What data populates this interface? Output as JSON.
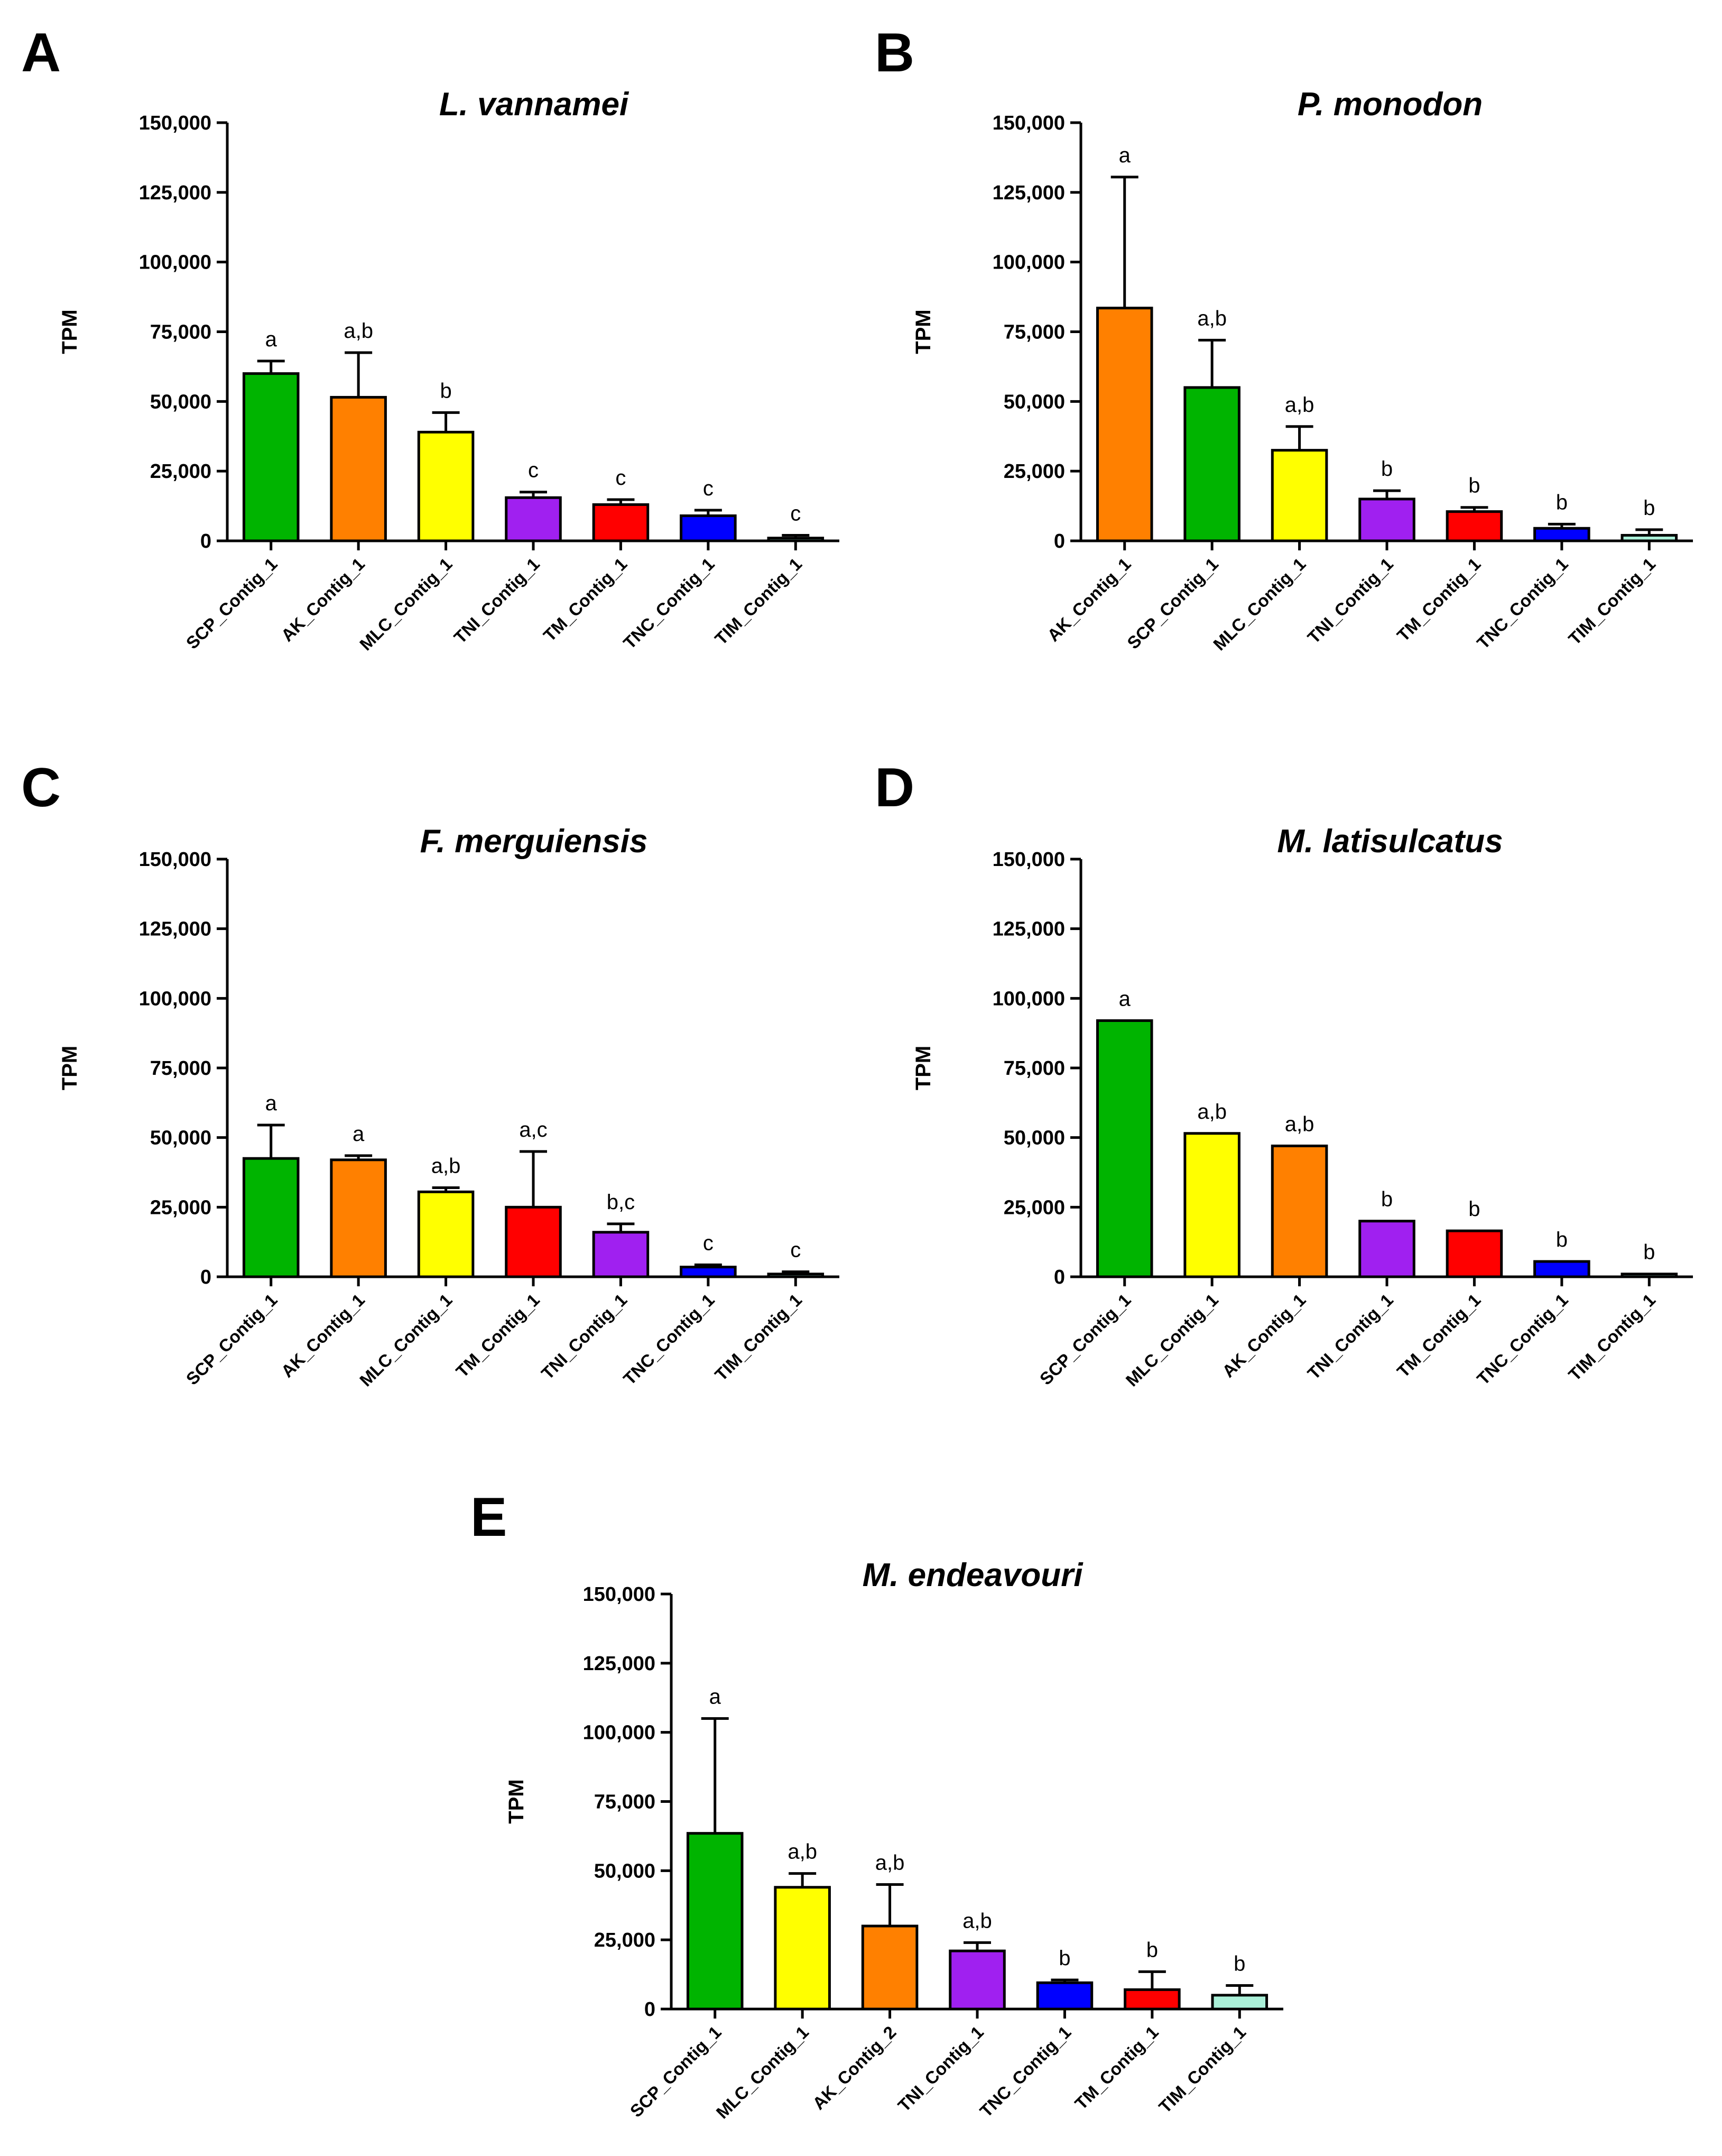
{
  "colors": {
    "SCP": "#00b400",
    "AK": "#ff8000",
    "MLC": "#ffff00",
    "TNI": "#a020f0",
    "TM": "#ff0000",
    "TNC": "#0000ff",
    "TIM": "#aaf0d8"
  },
  "chart_data": [
    {
      "panel": "A",
      "type": "bar",
      "title": "L. vannamei",
      "ylabel": "TPM",
      "ylim": [
        0,
        150000
      ],
      "yticks": [
        "0",
        "25,000",
        "50,000",
        "75,000",
        "100,000",
        "125,000",
        "150,000"
      ],
      "categories": [
        "SCP_Contig_1",
        "AK_Contig_1",
        "MLC_Contig_1",
        "TNI_Contig_1",
        "TM_Contig_1",
        "TNC_Contig_1",
        "TIM_Contig_1"
      ],
      "color_keys": [
        "SCP",
        "AK",
        "MLC",
        "TNI",
        "TM",
        "TNC",
        "TIM"
      ],
      "values": [
        60000,
        51500,
        39000,
        15500,
        13000,
        9000,
        1000
      ],
      "errors": [
        4500,
        16000,
        7000,
        2000,
        1800,
        2000,
        1000
      ],
      "labels": [
        "a",
        "a,b",
        "b",
        "c",
        "c",
        "c",
        "c"
      ]
    },
    {
      "panel": "B",
      "type": "bar",
      "title": "P. monodon",
      "ylabel": "TPM",
      "ylim": [
        0,
        150000
      ],
      "yticks": [
        "0",
        "25,000",
        "50,000",
        "75,000",
        "100,000",
        "125,000",
        "150,000"
      ],
      "categories": [
        "AK_Contig_1",
        "SCP_Contig_1",
        "MLC_Contig_1",
        "TNI_Contig_1",
        "TM_Contig_1",
        "TNC_Contig_1",
        "TIM_Contig_1"
      ],
      "color_keys": [
        "AK",
        "SCP",
        "MLC",
        "TNI",
        "TM",
        "TNC",
        "TIM"
      ],
      "values": [
        83500,
        55000,
        32500,
        15000,
        10500,
        4500,
        2000
      ],
      "errors": [
        47000,
        17000,
        8500,
        3000,
        1500,
        1500,
        2000
      ],
      "labels": [
        "a",
        "a,b",
        "a,b",
        "b",
        "b",
        "b",
        "b"
      ]
    },
    {
      "panel": "C",
      "type": "bar",
      "title": "F. merguiensis",
      "ylabel": "TPM",
      "ylim": [
        0,
        150000
      ],
      "yticks": [
        "0",
        "25,000",
        "50,000",
        "75,000",
        "100,000",
        "125,000",
        "150,000"
      ],
      "categories": [
        "SCP_Contig_1",
        "AK_Contig_1",
        "MLC_Contig_1",
        "TM_Contig_1",
        "TNI_Contig_1",
        "TNC_Contig_1",
        "TIM_Contig_1"
      ],
      "color_keys": [
        "SCP",
        "AK",
        "MLC",
        "TM",
        "TNI",
        "TNC",
        "TIM"
      ],
      "values": [
        42500,
        42000,
        30500,
        25000,
        16000,
        3500,
        1000
      ],
      "errors": [
        12000,
        1500,
        1500,
        20000,
        3000,
        800,
        800
      ],
      "labels": [
        "a",
        "a",
        "a,b",
        "a,c",
        "b,c",
        "c",
        "c"
      ]
    },
    {
      "panel": "D",
      "type": "bar",
      "title": "M. latisulcatus",
      "ylabel": "TPM",
      "ylim": [
        0,
        150000
      ],
      "yticks": [
        "0",
        "25,000",
        "50,000",
        "75,000",
        "100,000",
        "125,000",
        "150,000"
      ],
      "categories": [
        "SCP_Contig_1",
        "MLC_Contig_1",
        "AK_Contig_1",
        "TNI_Contig_1",
        "TM_Contig_1",
        "TNC_Contig_1",
        "TIM_Contig_1"
      ],
      "color_keys": [
        "SCP",
        "MLC",
        "AK",
        "TNI",
        "TM",
        "TNC",
        "TIM"
      ],
      "values": [
        92000,
        51500,
        47000,
        20000,
        16500,
        5500,
        1000
      ],
      "errors": [
        0,
        0,
        0,
        0,
        0,
        0,
        0
      ],
      "labels": [
        "a",
        "a,b",
        "a,b",
        "b",
        "b",
        "b",
        "b"
      ]
    },
    {
      "panel": "E",
      "type": "bar",
      "title": "M. endeavouri",
      "ylabel": "TPM",
      "ylim": [
        0,
        150000
      ],
      "yticks": [
        "0",
        "25,000",
        "50,000",
        "75,000",
        "100,000",
        "125,000",
        "150,000"
      ],
      "categories": [
        "SCP_Contig_1",
        "MLC_Contig_1",
        "AK_Contig_2",
        "TNI_Contig_1",
        "TNC_Contig_1",
        "TM_Contig_1",
        "TIM_Contig_1"
      ],
      "color_keys": [
        "SCP",
        "MLC",
        "AK",
        "TNI",
        "TNC",
        "TM",
        "TIM"
      ],
      "values": [
        63500,
        44000,
        30000,
        21000,
        9500,
        7000,
        5000
      ],
      "errors": [
        41500,
        5000,
        15000,
        3000,
        1000,
        6500,
        3500
      ],
      "labels": [
        "a",
        "a,b",
        "a,b",
        "a,b",
        "b",
        "b",
        "b"
      ]
    }
  ]
}
